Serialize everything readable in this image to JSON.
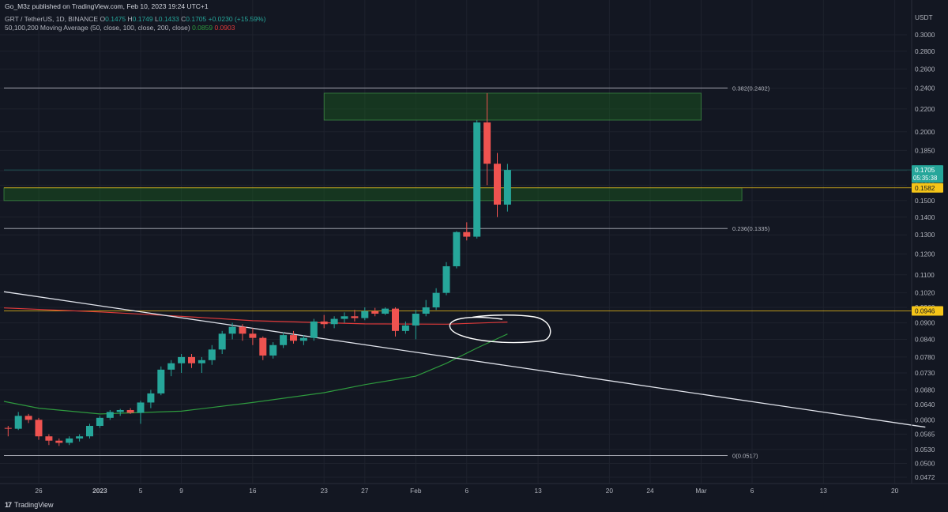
{
  "header": {
    "published": "Go_M3z published on TradingView.com, Feb 10, 2023 19:24 UTC+1",
    "symbol": "GRT / TetherUS, 1D, BINANCE",
    "ohlc": {
      "o_label": "O",
      "o": "0.1475",
      "h_label": "H",
      "h": "0.1749",
      "l_label": "L",
      "l": "0.1433",
      "c_label": "C",
      "c": "0.1705",
      "change": "+0.0230 (+15.59%)"
    },
    "ma_label": "50,100,200 Moving Average (50, close, 100, close, 200, close)",
    "ma50_value": "0.0859",
    "ma200_value": "0.0903"
  },
  "logo": {
    "text": "TradingView"
  },
  "colors": {
    "background": "#131722",
    "up": "#26a69a",
    "down": "#ef5350",
    "ma50": "#2e9a3e",
    "ma200": "#e03a3a",
    "zone": "#1b5e20",
    "yellow": "#f5c518",
    "trendline": "#e0e3eb"
  },
  "chart_data": {
    "type": "candlestick",
    "y_axis": {
      "unit": "USDT",
      "scale": "log",
      "ticks": [
        "0.3000",
        "0.2800",
        "0.2600",
        "0.2400",
        "0.2200",
        "0.2000",
        "0.1850",
        "0.1700",
        "0.1600",
        "0.1500",
        "0.1400",
        "0.1300",
        "0.1200",
        "0.1100",
        "0.1020",
        "0.0960",
        "0.0900",
        "0.0840",
        "0.0780",
        "0.0730",
        "0.0680",
        "0.0640",
        "0.0600",
        "0.0565",
        "0.0530",
        "0.0500",
        "0.0472"
      ]
    },
    "x_axis": {
      "ticks": [
        "26",
        "2023",
        "5",
        "9",
        "16",
        "23",
        "27",
        "Feb",
        "6",
        "13",
        "20",
        "24",
        "Mar",
        "6",
        "13",
        "20"
      ]
    },
    "last_price": {
      "value": "0.1705",
      "countdown": "05:35:38"
    },
    "candles": [
      {
        "date": "2022-12-21",
        "o": 0.0585,
        "h": 0.0588,
        "l": 0.0575,
        "c": 0.0582
      },
      {
        "date": "2022-12-22",
        "o": 0.0583,
        "h": 0.0591,
        "l": 0.0574,
        "c": 0.058
      },
      {
        "date": "2022-12-23",
        "o": 0.058,
        "h": 0.0585,
        "l": 0.056,
        "c": 0.0578
      },
      {
        "date": "2022-12-24",
        "o": 0.0578,
        "h": 0.062,
        "l": 0.0575,
        "c": 0.061
      },
      {
        "date": "2022-12-25",
        "o": 0.061,
        "h": 0.0615,
        "l": 0.0592,
        "c": 0.06
      },
      {
        "date": "2022-12-26",
        "o": 0.06,
        "h": 0.0605,
        "l": 0.0552,
        "c": 0.056
      },
      {
        "date": "2022-12-27",
        "o": 0.056,
        "h": 0.0565,
        "l": 0.054,
        "c": 0.055
      },
      {
        "date": "2022-12-28",
        "o": 0.055,
        "h": 0.0555,
        "l": 0.0538,
        "c": 0.0545
      },
      {
        "date": "2022-12-29",
        "o": 0.0545,
        "h": 0.056,
        "l": 0.054,
        "c": 0.0555
      },
      {
        "date": "2022-12-30",
        "o": 0.0555,
        "h": 0.0565,
        "l": 0.0548,
        "c": 0.056
      },
      {
        "date": "2022-12-31",
        "o": 0.056,
        "h": 0.059,
        "l": 0.0555,
        "c": 0.0585
      },
      {
        "date": "2023-01-01",
        "o": 0.0585,
        "h": 0.061,
        "l": 0.058,
        "c": 0.0605
      },
      {
        "date": "2023-01-02",
        "o": 0.0605,
        "h": 0.0625,
        "l": 0.06,
        "c": 0.062
      },
      {
        "date": "2023-01-03",
        "o": 0.062,
        "h": 0.0628,
        "l": 0.061,
        "c": 0.0625
      },
      {
        "date": "2023-01-04",
        "o": 0.0625,
        "h": 0.063,
        "l": 0.0615,
        "c": 0.0618
      },
      {
        "date": "2023-01-05",
        "o": 0.0618,
        "h": 0.065,
        "l": 0.059,
        "c": 0.0645
      },
      {
        "date": "2023-01-06",
        "o": 0.0645,
        "h": 0.068,
        "l": 0.063,
        "c": 0.067
      },
      {
        "date": "2023-01-07",
        "o": 0.067,
        "h": 0.075,
        "l": 0.0665,
        "c": 0.074
      },
      {
        "date": "2023-01-08",
        "o": 0.074,
        "h": 0.077,
        "l": 0.072,
        "c": 0.076
      },
      {
        "date": "2023-01-09",
        "o": 0.076,
        "h": 0.079,
        "l": 0.073,
        "c": 0.078
      },
      {
        "date": "2023-01-10",
        "o": 0.078,
        "h": 0.079,
        "l": 0.0745,
        "c": 0.076
      },
      {
        "date": "2023-01-11",
        "o": 0.076,
        "h": 0.078,
        "l": 0.073,
        "c": 0.077
      },
      {
        "date": "2023-01-12",
        "o": 0.077,
        "h": 0.082,
        "l": 0.0755,
        "c": 0.0805
      },
      {
        "date": "2023-01-13",
        "o": 0.0805,
        "h": 0.087,
        "l": 0.079,
        "c": 0.086
      },
      {
        "date": "2023-01-14",
        "o": 0.086,
        "h": 0.09,
        "l": 0.084,
        "c": 0.0885
      },
      {
        "date": "2023-01-15",
        "o": 0.0885,
        "h": 0.0895,
        "l": 0.0835,
        "c": 0.086
      },
      {
        "date": "2023-01-16",
        "o": 0.086,
        "h": 0.088,
        "l": 0.082,
        "c": 0.0845
      },
      {
        "date": "2023-01-17",
        "o": 0.0845,
        "h": 0.085,
        "l": 0.077,
        "c": 0.0785
      },
      {
        "date": "2023-01-18",
        "o": 0.0785,
        "h": 0.083,
        "l": 0.0775,
        "c": 0.082
      },
      {
        "date": "2023-01-19",
        "o": 0.082,
        "h": 0.0865,
        "l": 0.081,
        "c": 0.0855
      },
      {
        "date": "2023-01-20",
        "o": 0.0855,
        "h": 0.087,
        "l": 0.0825,
        "c": 0.0835
      },
      {
        "date": "2023-01-21",
        "o": 0.0835,
        "h": 0.0855,
        "l": 0.082,
        "c": 0.0845
      },
      {
        "date": "2023-01-22",
        "o": 0.0845,
        "h": 0.0915,
        "l": 0.0835,
        "c": 0.0905
      },
      {
        "date": "2023-01-23",
        "o": 0.0905,
        "h": 0.093,
        "l": 0.088,
        "c": 0.0895
      },
      {
        "date": "2023-01-24",
        "o": 0.0895,
        "h": 0.0925,
        "l": 0.088,
        "c": 0.0915
      },
      {
        "date": "2023-01-25",
        "o": 0.0915,
        "h": 0.094,
        "l": 0.09,
        "c": 0.0925
      },
      {
        "date": "2023-01-26",
        "o": 0.0925,
        "h": 0.095,
        "l": 0.0905,
        "c": 0.0918
      },
      {
        "date": "2023-01-27",
        "o": 0.0918,
        "h": 0.096,
        "l": 0.091,
        "c": 0.0945
      },
      {
        "date": "2023-01-28",
        "o": 0.0945,
        "h": 0.0958,
        "l": 0.0925,
        "c": 0.0935
      },
      {
        "date": "2023-01-29",
        "o": 0.0935,
        "h": 0.096,
        "l": 0.093,
        "c": 0.0955
      },
      {
        "date": "2023-01-30",
        "o": 0.0955,
        "h": 0.096,
        "l": 0.085,
        "c": 0.087
      },
      {
        "date": "2023-01-31",
        "o": 0.087,
        "h": 0.0905,
        "l": 0.086,
        "c": 0.089
      },
      {
        "date": "2023-02-01",
        "o": 0.089,
        "h": 0.095,
        "l": 0.084,
        "c": 0.0935
      },
      {
        "date": "2023-02-02",
        "o": 0.0935,
        "h": 0.099,
        "l": 0.0925,
        "c": 0.096
      },
      {
        "date": "2023-02-03",
        "o": 0.096,
        "h": 0.104,
        "l": 0.095,
        "c": 0.102
      },
      {
        "date": "2023-02-04",
        "o": 0.102,
        "h": 0.116,
        "l": 0.101,
        "c": 0.114
      },
      {
        "date": "2023-02-05",
        "o": 0.114,
        "h": 0.132,
        "l": 0.113,
        "c": 0.1315
      },
      {
        "date": "2023-02-06",
        "o": 0.1315,
        "h": 0.137,
        "l": 0.127,
        "c": 0.129
      },
      {
        "date": "2023-02-07",
        "o": 0.129,
        "h": 0.21,
        "l": 0.128,
        "c": 0.208
      },
      {
        "date": "2023-02-08",
        "o": 0.208,
        "h": 0.235,
        "l": 0.16,
        "c": 0.175
      },
      {
        "date": "2023-02-09",
        "o": 0.175,
        "h": 0.183,
        "l": 0.14,
        "c": 0.1475
      },
      {
        "date": "2023-02-10",
        "o": 0.1475,
        "h": 0.1749,
        "l": 0.1433,
        "c": 0.1705
      }
    ],
    "ma50": [
      {
        "date": "2022-12-21",
        "v": 0.0648
      },
      {
        "date": "2022-12-26",
        "v": 0.063
      },
      {
        "date": "2023-01-01",
        "v": 0.0615
      },
      {
        "date": "2023-01-09",
        "v": 0.0622
      },
      {
        "date": "2023-01-16",
        "v": 0.0645
      },
      {
        "date": "2023-01-23",
        "v": 0.0672
      },
      {
        "date": "2023-01-27",
        "v": 0.0695
      },
      {
        "date": "2023-02-01",
        "v": 0.072
      },
      {
        "date": "2023-02-04",
        "v": 0.076
      },
      {
        "date": "2023-02-07",
        "v": 0.081
      },
      {
        "date": "2023-02-10",
        "v": 0.0859
      }
    ],
    "ma200": [
      {
        "date": "2022-12-21",
        "v": 0.0958
      },
      {
        "date": "2023-01-01",
        "v": 0.0942
      },
      {
        "date": "2023-01-09",
        "v": 0.0925
      },
      {
        "date": "2023-01-16",
        "v": 0.0908
      },
      {
        "date": "2023-01-27",
        "v": 0.0896
      },
      {
        "date": "2023-02-04",
        "v": 0.0895
      },
      {
        "date": "2023-02-10",
        "v": 0.0903
      }
    ],
    "fib_levels": [
      {
        "label": "0.382(0.2402)",
        "value": 0.2402
      },
      {
        "label": "0.236(0.1335)",
        "value": 0.1335
      },
      {
        "label": "0(0.0517)",
        "value": 0.0517
      }
    ],
    "horizontal_levels": [
      {
        "label": "0.1582",
        "value": 0.1582
      },
      {
        "label": "0.0946",
        "value": 0.0946
      }
    ],
    "zones": [
      {
        "name": "upper-zone",
        "from": "2023-01-23",
        "to": "2023-03-01",
        "low": 0.21,
        "high": 0.235
      },
      {
        "name": "lower-zone",
        "from": "2022-12-21",
        "to": "2023-03-05",
        "low": 0.15,
        "high": 0.1582
      }
    ],
    "trendline": {
      "from": {
        "date": "2022-12-21",
        "v": 0.1025
      },
      "to": {
        "date": "2023-03-23",
        "v": 0.0582
      }
    }
  }
}
